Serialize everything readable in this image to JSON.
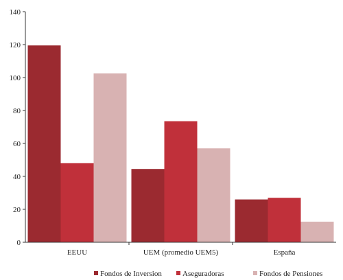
{
  "chart_data": {
    "type": "bar",
    "categories": [
      "EEUU",
      "UEM (promedio UEM5)",
      "España"
    ],
    "series": [
      {
        "name": "Fondos de Inversion",
        "color": "#9b2a30",
        "values": [
          119.5,
          44.5,
          26
        ]
      },
      {
        "name": "Aseguradoras",
        "color": "#c0303a",
        "values": [
          48,
          73.5,
          27
        ]
      },
      {
        "name": "Fondos de Pensiones",
        "color": "#d8b2b2",
        "values": [
          102.5,
          57,
          12.5
        ]
      }
    ],
    "yticks": [
      "0",
      "20",
      "40",
      "60",
      "80",
      "100",
      "120",
      "140"
    ],
    "ylim": [
      0,
      140
    ],
    "grid": false,
    "legend_position": "bottom"
  }
}
